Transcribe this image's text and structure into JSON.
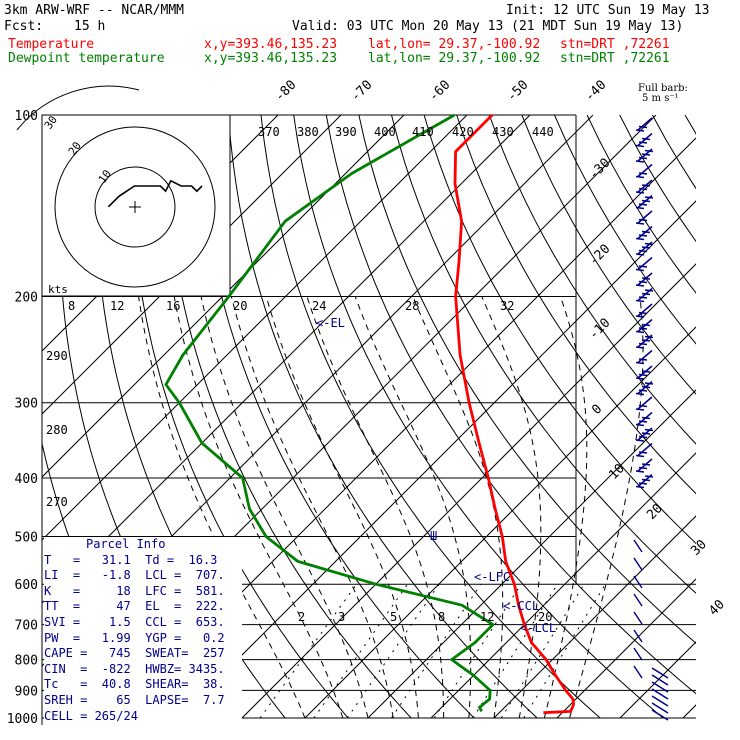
{
  "header": {
    "model": "3km ARW-WRF -- NCAR/MMM",
    "init": "Init: 12 UTC Sun 19 May 13",
    "fcst_label": "Fcst:",
    "fcst_value": "15 h",
    "valid": "Valid: 03 UTC Mon 20 May 13 (21 MDT Sun 19 May 13)"
  },
  "legend": {
    "temperature": {
      "label": "Temperature",
      "xy": "x,y=393.46,135.23",
      "latlon": "lat,lon= 29.37,-100.92",
      "stn": "stn=DRT ,72261",
      "color": "#ff0000"
    },
    "dewpoint": {
      "label": "Dewpoint temperature",
      "xy": "x,y=393.46,135.23",
      "latlon": "lat,lon= 29.37,-100.92",
      "stn": "stn=DRT ,72261",
      "color": "#008000"
    }
  },
  "barb_key": {
    "line1": "Full barb:",
    "line2": "5 m s⁻¹"
  },
  "parcel_info": {
    "title": "Parcel Info",
    "rows": [
      "T   =   31.1  Td =  16.3",
      "LI  =   -1.8  LCL =  707.",
      "K   =     18  LFC =  581.",
      "TT  =     47  EL  =  222.",
      "SVI =    1.5  CCL =  653.",
      "PW  =   1.99  YGP =   0.2",
      "CAPE =   745  SWEAT=  257",
      "CIN  =  -822  HWBZ= 3435.",
      "Tc   =  40.8  SHEAR=  38.",
      "SREH =    65  LAPSE=  7.7",
      "CELL = 265/24"
    ]
  },
  "annotations": {
    "el": "<-EL",
    "lfc": "<-LFC",
    "ccl": "<-CCL",
    "lcl": "<-LCL"
  },
  "hodograph": {
    "units": "kts",
    "ring_labels": [
      "10",
      "20",
      "30"
    ],
    "speed_axis": [
      "8",
      "12",
      "16",
      "20",
      "24",
      "28",
      "32"
    ]
  },
  "chart_data": {
    "type": "line",
    "title": "",
    "pressure_ticks": [
      100,
      200,
      300,
      400,
      500,
      600,
      700,
      800,
      900,
      1000
    ],
    "temperature_isotherm_labels": [
      -80,
      -70,
      -60,
      -50,
      -40,
      -30,
      -20,
      -10,
      0,
      10,
      20,
      30,
      40
    ],
    "theta_labels": [
      370,
      380,
      390,
      400,
      410,
      420,
      430,
      440
    ],
    "theta_left_labels": [
      290,
      280,
      270
    ],
    "mixing_ratio_labels": [
      2,
      3,
      5,
      8,
      12,
      20
    ],
    "series": [
      {
        "name": "Temperature",
        "color": "#ff0000",
        "points": [
          {
            "p": 100,
            "t": -76
          },
          {
            "p": 115,
            "t": -76
          },
          {
            "p": 130,
            "t": -71
          },
          {
            "p": 150,
            "t": -64
          },
          {
            "p": 175,
            "t": -58
          },
          {
            "p": 200,
            "t": -53
          },
          {
            "p": 250,
            "t": -43
          },
          {
            "p": 300,
            "t": -34
          },
          {
            "p": 350,
            "t": -26
          },
          {
            "p": 400,
            "t": -19
          },
          {
            "p": 450,
            "t": -13
          },
          {
            "p": 500,
            "t": -7.5
          },
          {
            "p": 550,
            "t": -3
          },
          {
            "p": 600,
            "t": 2
          },
          {
            "p": 650,
            "t": 6
          },
          {
            "p": 700,
            "t": 10
          },
          {
            "p": 750,
            "t": 14
          },
          {
            "p": 800,
            "t": 19
          },
          {
            "p": 850,
            "t": 23
          },
          {
            "p": 900,
            "t": 27
          },
          {
            "p": 930,
            "t": 29.5
          },
          {
            "p": 950,
            "t": 30.5
          },
          {
            "p": 975,
            "t": 31.1
          },
          {
            "p": 980,
            "t": 27
          }
        ]
      },
      {
        "name": "Dewpoint temperature",
        "color": "#008000",
        "points": [
          {
            "p": 100,
            "t": -82
          },
          {
            "p": 110,
            "t": -85
          },
          {
            "p": 125,
            "t": -89
          },
          {
            "p": 150,
            "t": -92
          },
          {
            "p": 200,
            "t": -89
          },
          {
            "p": 250,
            "t": -87
          },
          {
            "p": 280,
            "t": -85
          },
          {
            "p": 300,
            "t": -80
          },
          {
            "p": 350,
            "t": -70
          },
          {
            "p": 400,
            "t": -58
          },
          {
            "p": 450,
            "t": -52
          },
          {
            "p": 500,
            "t": -45
          },
          {
            "p": 550,
            "t": -36
          },
          {
            "p": 600,
            "t": -20
          },
          {
            "p": 650,
            "t": -3
          },
          {
            "p": 700,
            "t": 5
          },
          {
            "p": 750,
            "t": 5
          },
          {
            "p": 800,
            "t": 4
          },
          {
            "p": 850,
            "t": 10
          },
          {
            "p": 900,
            "t": 15
          },
          {
            "p": 930,
            "t": 16.3
          },
          {
            "p": 960,
            "t": 16
          },
          {
            "p": 975,
            "t": 17
          }
        ]
      }
    ],
    "hodograph_trace": [
      [
        -3,
        4
      ],
      [
        -1,
        2
      ],
      [
        2,
        0
      ],
      [
        5,
        0
      ],
      [
        7,
        0
      ],
      [
        8,
        1
      ],
      [
        9,
        -1
      ],
      [
        11,
        0
      ],
      [
        13,
        0
      ],
      [
        14,
        1
      ],
      [
        15,
        0
      ]
    ]
  },
  "colors": {
    "grid": "#000000",
    "barbs": "#00008b",
    "parcel_text": "#00008b",
    "temperature": "#ff0000",
    "dewpoint": "#008000"
  }
}
